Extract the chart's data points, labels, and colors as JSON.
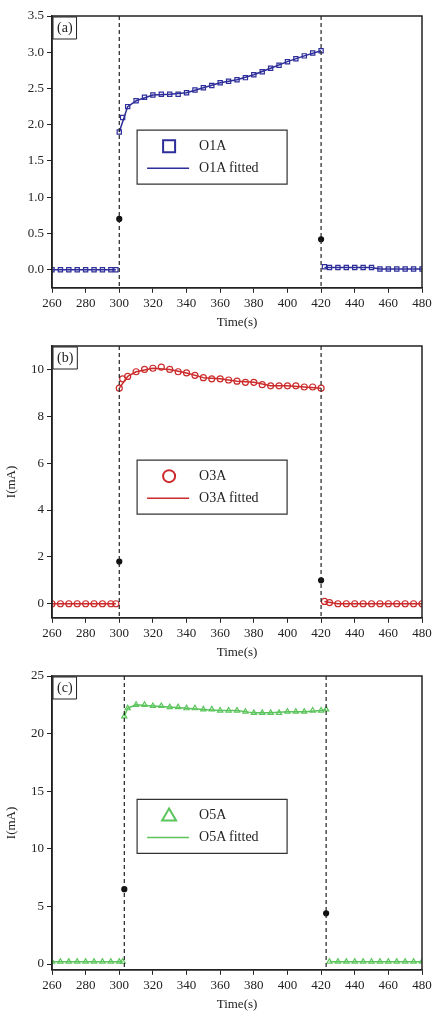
{
  "chart_data": [
    {
      "type": "scatter",
      "xlabel": "Time(s)",
      "annotations": [
        "(a)"
      ],
      "xlim": [
        260,
        480
      ],
      "xticks": [
        260,
        280,
        300,
        320,
        340,
        360,
        380,
        400,
        420,
        440,
        460,
        480
      ],
      "ylim": [
        -0.25,
        3.5
      ],
      "yticks": [
        {
          "value": 0,
          "label": "0.0"
        },
        {
          "value": 0.5,
          "label": "0.5"
        },
        {
          "value": 1,
          "label": "1.0"
        },
        {
          "value": 1.5,
          "label": "1.5"
        },
        {
          "value": 2,
          "label": "2.0"
        },
        {
          "value": 2.5,
          "label": "2.5"
        },
        {
          "value": 3,
          "label": "3.0"
        },
        {
          "value": 3.5,
          "label": "3.5"
        }
      ],
      "grid": false,
      "legend": "left",
      "ref_lines": [
        {
          "axis": "x",
          "value": 300,
          "color": "#222222",
          "line_style": "dashed"
        },
        {
          "axis": "x",
          "value": 420,
          "color": "#222222",
          "line_style": "dashed"
        }
      ],
      "series": [
        {
          "name": "O1A",
          "marker": "square",
          "color": "#2e2e9a",
          "x": [
            260,
            265,
            270,
            275,
            280,
            285,
            290,
            295,
            298,
            300,
            302,
            305,
            310,
            315,
            320,
            325,
            330,
            335,
            340,
            345,
            350,
            355,
            360,
            365,
            370,
            375,
            380,
            385,
            390,
            395,
            400,
            405,
            410,
            415,
            420,
            422,
            425,
            430,
            435,
            440,
            445,
            450,
            455,
            460,
            465,
            470,
            475,
            480
          ],
          "values": [
            0,
            0,
            0,
            0,
            0,
            0,
            0,
            0,
            0,
            1.9,
            2.1,
            2.25,
            2.33,
            2.38,
            2.41,
            2.42,
            2.42,
            2.42,
            2.44,
            2.48,
            2.51,
            2.54,
            2.58,
            2.6,
            2.62,
            2.65,
            2.69,
            2.73,
            2.78,
            2.82,
            2.87,
            2.91,
            2.95,
            2.99,
            3.02,
            0.04,
            0.03,
            0.03,
            0.03,
            0.03,
            0.03,
            0.03,
            0.01,
            0.01,
            0.01,
            0.01,
            0.01,
            0.01
          ]
        },
        {
          "name": "O1A fitted",
          "type": "line",
          "marker": "none",
          "line_style": "solid",
          "color": "#2e2e9a",
          "x": [
            260,
            298,
            299,
            300,
            305,
            310,
            320,
            330,
            340,
            350,
            360,
            370,
            380,
            390,
            400,
            410,
            420,
            421,
            422,
            450,
            455,
            480
          ],
          "values": [
            0,
            0,
            null,
            1.9,
            2.25,
            2.33,
            2.41,
            2.42,
            2.44,
            2.51,
            2.58,
            2.62,
            2.69,
            2.78,
            2.87,
            2.95,
            3.02,
            null,
            0.03,
            0.03,
            0.01,
            0.01
          ]
        },
        {
          "marker": "circle",
          "color": "#111111",
          "x": [
            300,
            420
          ],
          "values": [
            0.7,
            0.42
          ]
        }
      ]
    },
    {
      "type": "scatter",
      "xlabel": "Time(s)",
      "ylabel": "I(mA)",
      "annotations": [
        "(b)"
      ],
      "xlim": [
        260,
        480
      ],
      "xticks": [
        260,
        280,
        300,
        320,
        340,
        360,
        380,
        400,
        420,
        440,
        460,
        480
      ],
      "ylim": [
        -0.6,
        11
      ],
      "yticks": [
        0,
        2,
        4,
        6,
        8,
        10
      ],
      "grid": false,
      "legend": "left",
      "ref_lines": [
        {
          "axis": "x",
          "value": 300,
          "color": "#222222",
          "line_style": "dashed"
        },
        {
          "axis": "x",
          "value": 420,
          "color": "#222222",
          "line_style": "dashed"
        }
      ],
      "series": [
        {
          "name": "O3A",
          "marker": "circle",
          "color": "#cc2b2b",
          "x": [
            260,
            265,
            270,
            275,
            280,
            285,
            290,
            295,
            298,
            300,
            302,
            305,
            310,
            315,
            320,
            325,
            330,
            335,
            340,
            345,
            350,
            355,
            360,
            365,
            370,
            375,
            380,
            385,
            390,
            395,
            400,
            405,
            410,
            415,
            420,
            422,
            425,
            430,
            435,
            440,
            445,
            450,
            455,
            460,
            465,
            470,
            475,
            480
          ],
          "values": [
            0,
            0,
            0,
            0,
            0,
            0,
            0,
            0,
            0,
            9.2,
            9.6,
            9.7,
            9.9,
            10,
            10.05,
            10.1,
            10,
            9.9,
            9.85,
            9.75,
            9.65,
            9.6,
            9.6,
            9.55,
            9.5,
            9.45,
            9.45,
            9.35,
            9.3,
            9.3,
            9.3,
            9.3,
            9.25,
            9.25,
            9.2,
            0.1,
            0.05,
            0,
            0,
            0,
            0,
            0,
            0,
            0,
            0,
            0,
            0,
            0
          ]
        },
        {
          "name": "O3A fitted",
          "type": "line",
          "marker": "none",
          "line_style": "solid",
          "color": "#cc2b2b",
          "x": [
            260,
            298,
            299,
            300,
            305,
            310,
            320,
            330,
            340,
            350,
            360,
            370,
            380,
            390,
            400,
            410,
            420,
            421,
            422,
            430,
            480
          ],
          "values": [
            0,
            0,
            null,
            9.2,
            9.7,
            9.9,
            10.05,
            10,
            9.85,
            9.65,
            9.6,
            9.5,
            9.45,
            9.3,
            9.3,
            9.25,
            9.2,
            null,
            0.1,
            0,
            0
          ]
        },
        {
          "marker": "circle",
          "color": "#111111",
          "x": [
            300,
            420
          ],
          "values": [
            1.8,
            1
          ]
        }
      ]
    },
    {
      "type": "scatter",
      "xlabel": "Time(s)",
      "ylabel": "I(mA)",
      "annotations": [
        "(c)"
      ],
      "xlim": [
        260,
        480
      ],
      "xticks": [
        260,
        280,
        300,
        320,
        340,
        360,
        380,
        400,
        420,
        440,
        460,
        480
      ],
      "ylim": [
        -0.5,
        25
      ],
      "yticks": [
        0,
        5,
        10,
        15,
        20,
        25
      ],
      "grid": false,
      "legend": "left",
      "ref_lines": [
        {
          "axis": "x",
          "value": 303,
          "color": "#222222",
          "line_style": "dashed"
        },
        {
          "axis": "x",
          "value": 423,
          "color": "#222222",
          "line_style": "dashed"
        }
      ],
      "series": [
        {
          "name": "O5A",
          "marker": "triangle",
          "color": "#5cc45c",
          "x": [
            260,
            265,
            270,
            275,
            280,
            285,
            290,
            295,
            300,
            302,
            303,
            305,
            310,
            315,
            320,
            325,
            330,
            335,
            340,
            345,
            350,
            355,
            360,
            365,
            370,
            375,
            380,
            385,
            390,
            395,
            400,
            405,
            410,
            415,
            420,
            423,
            425,
            430,
            435,
            440,
            445,
            450,
            455,
            460,
            465,
            470,
            475,
            480
          ],
          "values": [
            0.2,
            0.2,
            0.2,
            0.2,
            0.2,
            0.2,
            0.2,
            0.2,
            0.2,
            0.2,
            21.5,
            22.2,
            22.5,
            22.5,
            22.4,
            22.4,
            22.3,
            22.3,
            22.2,
            22.2,
            22.1,
            22.1,
            22,
            22,
            22,
            21.9,
            21.8,
            21.8,
            21.8,
            21.8,
            21.9,
            21.9,
            21.9,
            22,
            22,
            22.1,
            0.2,
            0.2,
            0.2,
            0.2,
            0.2,
            0.2,
            0.2,
            0.2,
            0.2,
            0.2,
            0.2,
            0.2
          ]
        },
        {
          "name": "O5A fitted",
          "type": "line",
          "marker": "none",
          "line_style": "solid",
          "color": "#5cc45c",
          "x": [
            260,
            302,
            302.5,
            303,
            305,
            310,
            320,
            330,
            340,
            350,
            360,
            370,
            380,
            390,
            400,
            410,
            420,
            423,
            424,
            425,
            480
          ],
          "values": [
            0.2,
            0.2,
            null,
            21.5,
            22.2,
            22.5,
            22.4,
            22.3,
            22.2,
            22.1,
            22,
            22,
            21.8,
            21.8,
            21.9,
            21.9,
            22,
            22.1,
            null,
            0.2,
            0.2
          ]
        },
        {
          "marker": "circle",
          "color": "#111111",
          "x": [
            303,
            423
          ],
          "values": [
            6.5,
            4.4
          ]
        }
      ]
    }
  ]
}
